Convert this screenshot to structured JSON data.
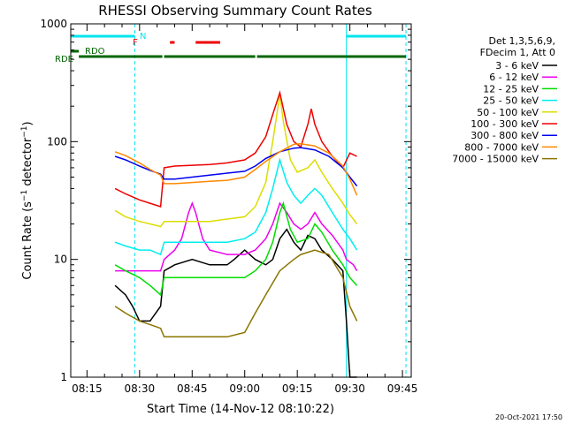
{
  "chart_data": {
    "type": "line",
    "title": "RHESSI Observing Summary Count Rates",
    "xlabel": "Start Time (14-Nov-12 08:10:22)",
    "ylabel": "Count Rate (s⁻¹ detector⁻¹)",
    "ylabel_main": "Count Rate (s",
    "ylabel_sup1": "−1",
    "ylabel_mid": " detector",
    "ylabel_sup2": "−1",
    "ylabel_end": ")",
    "y_scale": "log",
    "ylim": [
      1,
      1000
    ],
    "xlim": [
      "08:10:22",
      "09:47:30"
    ],
    "x_ticks": [
      "08:15",
      "08:30",
      "08:45",
      "09:00",
      "09:15",
      "09:30",
      "09:45"
    ],
    "y_ticks": [
      "1",
      "10",
      "100",
      "1000"
    ],
    "legend_header": [
      "Det 1,3,5,6,9,",
      "FDecim 1, Att 0"
    ],
    "legend_position": "right",
    "timestamp": "20-Oct-2021 17:50",
    "night_start": [
      "08:10:22",
      "09:29:00"
    ],
    "night_end": [
      "08:28:40",
      "09:46:00"
    ],
    "annotations": {
      "N": "N",
      "F": "F",
      "RDO": "RDO",
      "RDE": "RDE",
      "n_color": "#00e5ee",
      "saa_color": "#00e5ee",
      "flare_color": "#ee0000",
      "data_color": "#006600",
      "saa_periods": [
        [
          "08:10:22",
          "08:28:40"
        ],
        [
          "09:29:00",
          "09:46:00"
        ]
      ],
      "flare_periods": [
        [
          "08:38:40",
          "08:40:00"
        ],
        [
          "08:46:00",
          "08:53:00"
        ]
      ],
      "rdo_periods": [
        [
          "08:10:22",
          "08:12:40"
        ]
      ],
      "rde_periods": [
        [
          "08:12:40",
          "08:36:30"
        ],
        [
          "08:37:00",
          "09:03:00"
        ],
        [
          "09:03:30",
          "09:29:00"
        ],
        [
          "09:29:00",
          "09:46:00"
        ]
      ]
    },
    "series": [
      {
        "name": "3 - 6 keV",
        "color": "#000000",
        "x": [
          "08:23:00",
          "08:26:00",
          "08:28:00",
          "08:30:00",
          "08:33:00",
          "08:36:00",
          "08:37:00",
          "08:40:00",
          "08:45:00",
          "08:50:00",
          "08:55:00",
          "08:57:00",
          "09:00:00",
          "09:03:00",
          "09:06:00",
          "09:08:00",
          "09:10:00",
          "09:12:00",
          "09:14:00",
          "09:16:00",
          "09:18:00",
          "09:20:00",
          "09:22:00",
          "09:25:00",
          "09:28:00",
          "09:29:00",
          "09:30:00",
          "09:32:00"
        ],
        "y": [
          6,
          5,
          4,
          3,
          3,
          4,
          8,
          9,
          10,
          9,
          9,
          10,
          12,
          10,
          9,
          10,
          15,
          18,
          14,
          12,
          16,
          15,
          12,
          10,
          8,
          3,
          1,
          1
        ]
      },
      {
        "name": "6 - 12 keV",
        "color": "#ee00ee",
        "x": [
          "08:23:00",
          "08:26:00",
          "08:30:00",
          "08:33:00",
          "08:36:00",
          "08:37:00",
          "08:40:00",
          "08:42:00",
          "08:44:00",
          "08:45:00",
          "08:46:00",
          "08:48:00",
          "08:50:00",
          "08:55:00",
          "09:00:00",
          "09:03:00",
          "09:06:00",
          "09:08:00",
          "09:10:00",
          "09:12:00",
          "09:14:00",
          "09:16:00",
          "09:18:00",
          "09:20:00",
          "09:22:00",
          "09:25:00",
          "09:28:00",
          "09:29:00",
          "09:31:00",
          "09:32:00"
        ],
        "y": [
          8,
          8,
          8,
          8,
          8,
          10,
          12,
          15,
          25,
          30,
          25,
          15,
          12,
          11,
          11,
          12,
          15,
          20,
          30,
          25,
          20,
          18,
          20,
          25,
          20,
          16,
          12,
          10,
          9,
          8
        ]
      },
      {
        "name": "12 - 25 keV",
        "color": "#00dd00",
        "x": [
          "08:23:00",
          "08:26:00",
          "08:30:00",
          "08:33:00",
          "08:36:00",
          "08:37:00",
          "08:40:00",
          "08:45:00",
          "08:50:00",
          "08:55:00",
          "09:00:00",
          "09:03:00",
          "09:06:00",
          "09:08:00",
          "09:10:00",
          "09:11:00",
          "09:13:00",
          "09:15:00",
          "09:18:00",
          "09:20:00",
          "09:22:00",
          "09:25:00",
          "09:28:00",
          "09:30:00",
          "09:32:00"
        ],
        "y": [
          9,
          8,
          7,
          6,
          5,
          7,
          7,
          7,
          7,
          7,
          7,
          8,
          10,
          14,
          25,
          30,
          18,
          14,
          15,
          20,
          17,
          12,
          9,
          7,
          6
        ]
      },
      {
        "name": "25 - 50 keV",
        "color": "#00eeee",
        "x": [
          "08:23:00",
          "08:26:00",
          "08:30:00",
          "08:33:00",
          "08:36:00",
          "08:37:00",
          "08:40:00",
          "08:45:00",
          "08:50:00",
          "08:55:00",
          "09:00:00",
          "09:03:00",
          "09:06:00",
          "09:08:00",
          "09:10:00",
          "09:12:00",
          "09:14:00",
          "09:16:00",
          "09:18:00",
          "09:20:00",
          "09:22:00",
          "09:25:00",
          "09:28:00",
          "09:30:00",
          "09:32:00"
        ],
        "y": [
          14,
          13,
          12,
          12,
          11,
          14,
          14,
          14,
          14,
          14,
          15,
          17,
          25,
          40,
          70,
          45,
          35,
          30,
          35,
          40,
          35,
          25,
          18,
          15,
          12
        ]
      },
      {
        "name": "50 - 100 keV",
        "color": "#dddd00",
        "x": [
          "08:23:00",
          "08:26:00",
          "08:30:00",
          "08:33:00",
          "08:36:00",
          "08:37:00",
          "08:40:00",
          "08:45:00",
          "08:50:00",
          "08:55:00",
          "09:00:00",
          "09:03:00",
          "09:06:00",
          "09:08:00",
          "09:10:00",
          "09:11:00",
          "09:13:00",
          "09:15:00",
          "09:18:00",
          "09:20:00",
          "09:22:00",
          "09:25:00",
          "09:28:00",
          "09:30:00",
          "09:32:00"
        ],
        "y": [
          26,
          23,
          21,
          20,
          19,
          21,
          21,
          21,
          21,
          22,
          23,
          28,
          45,
          100,
          250,
          150,
          70,
          55,
          60,
          70,
          55,
          40,
          30,
          24,
          20
        ]
      },
      {
        "name": "100 - 300 keV",
        "color": "#ee0000",
        "x": [
          "08:23:00",
          "08:26:00",
          "08:30:00",
          "08:33:00",
          "08:36:00",
          "08:37:00",
          "08:40:00",
          "08:45:00",
          "08:50:00",
          "08:55:00",
          "09:00:00",
          "09:03:00",
          "09:06:00",
          "09:08:00",
          "09:10:00",
          "09:12:00",
          "09:14:00",
          "09:16:00",
          "09:18:00",
          "09:19:00",
          "09:20:00",
          "09:22:00",
          "09:25:00",
          "09:28:00",
          "09:30:00",
          "09:32:00"
        ],
        "y": [
          40,
          36,
          32,
          30,
          28,
          60,
          62,
          63,
          64,
          66,
          70,
          80,
          110,
          170,
          260,
          140,
          100,
          90,
          140,
          190,
          140,
          100,
          75,
          60,
          80,
          75
        ]
      },
      {
        "name": "300 - 800 keV",
        "color": "#0000ee",
        "x": [
          "08:23:00",
          "08:26:00",
          "08:30:00",
          "08:33:00",
          "08:36:00",
          "08:37:00",
          "08:40:00",
          "08:45:00",
          "08:50:00",
          "08:55:00",
          "09:00:00",
          "09:03:00",
          "09:06:00",
          "09:10:00",
          "09:14:00",
          "09:16:00",
          "09:20:00",
          "09:24:00",
          "09:28:00",
          "09:30:00",
          "09:32:00"
        ],
        "y": [
          75,
          70,
          62,
          57,
          53,
          48,
          48,
          50,
          52,
          54,
          56,
          62,
          72,
          82,
          88,
          89,
          85,
          75,
          60,
          50,
          42
        ]
      },
      {
        "name": "800 - 7000 keV",
        "color": "#ff8800",
        "x": [
          "08:23:00",
          "08:26:00",
          "08:30:00",
          "08:33:00",
          "08:36:00",
          "08:37:00",
          "08:40:00",
          "08:45:00",
          "08:50:00",
          "08:55:00",
          "09:00:00",
          "09:03:00",
          "09:06:00",
          "09:10:00",
          "09:14:00",
          "09:16:00",
          "09:20:00",
          "09:24:00",
          "09:28:00",
          "09:30:00",
          "09:32:00"
        ],
        "y": [
          82,
          76,
          66,
          58,
          52,
          44,
          44,
          45,
          46,
          47,
          50,
          58,
          68,
          82,
          95,
          96,
          92,
          80,
          62,
          48,
          35
        ]
      },
      {
        "name": "7000 - 15000 keV",
        "color": "#8b7500",
        "x": [
          "08:23:00",
          "08:26:00",
          "08:30:00",
          "08:33:00",
          "08:36:00",
          "08:37:00",
          "08:40:00",
          "08:45:00",
          "08:50:00",
          "08:55:00",
          "09:00:00",
          "09:03:00",
          "09:06:00",
          "09:10:00",
          "09:14:00",
          "09:16:00",
          "09:20:00",
          "09:24:00",
          "09:28:00",
          "09:30:00",
          "09:32:00"
        ],
        "y": [
          4,
          3.5,
          3,
          2.8,
          2.6,
          2.2,
          2.2,
          2.2,
          2.2,
          2.2,
          2.4,
          3.5,
          5,
          8,
          10,
          11,
          12,
          11,
          7,
          4,
          3
        ]
      }
    ]
  }
}
